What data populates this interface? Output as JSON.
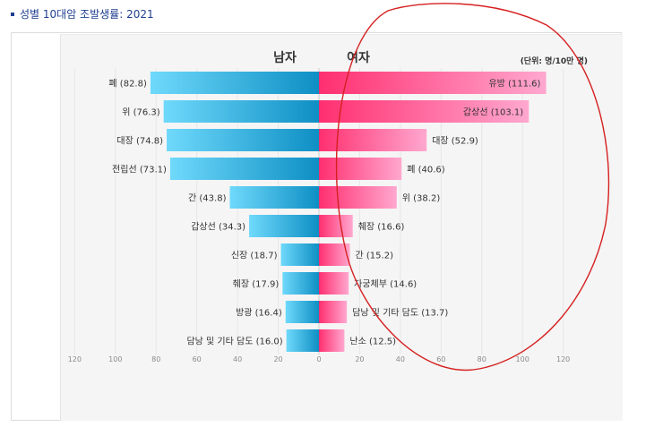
{
  "page": {
    "title": "성별 10대암 조발생률: 2021"
  },
  "chart_data": {
    "type": "bar",
    "orientation": "horizontal",
    "subtype": "population-pyramid",
    "unit_label": "(단위: 명/10만 명)",
    "left_header": "남자",
    "right_header": "여자",
    "xlim": [
      -120,
      120
    ],
    "x_ticks": [
      "120",
      "100",
      "80",
      "60",
      "40",
      "20",
      "0",
      "20",
      "40",
      "60",
      "80",
      "100",
      "120"
    ],
    "series": [
      {
        "name": "남자",
        "categories": [
          "폐",
          "위",
          "대장",
          "전립선",
          "간",
          "갑상선",
          "신장",
          "췌장",
          "방광",
          "담낭 및 기타 담도"
        ],
        "values": [
          82.8,
          76.3,
          74.8,
          73.1,
          43.8,
          34.3,
          18.7,
          17.9,
          16.4,
          16.0
        ],
        "labels": [
          "폐 (82.8)",
          "위 (76.3)",
          "대장 (74.8)",
          "전립선 (73.1)",
          "간 (43.8)",
          "갑상선 (34.3)",
          "신장 (18.7)",
          "췌장 (17.9)",
          "방광 (16.4)",
          "담낭 및 기타 담도 (16.0)"
        ],
        "color": "#1aa7d8"
      },
      {
        "name": "여자",
        "categories": [
          "유방",
          "갑상선",
          "대장",
          "폐",
          "위",
          "췌장",
          "간",
          "자궁체부",
          "담낭 및 기타 담도",
          "난소"
        ],
        "values": [
          111.6,
          103.1,
          52.9,
          40.6,
          38.2,
          16.6,
          15.2,
          14.6,
          13.7,
          12.5
        ],
        "labels": [
          "유방 (111.6)",
          "갑상선 (103.1)",
          "대장 (52.9)",
          "폐 (40.6)",
          "위 (38.2)",
          "췌장 (16.6)",
          "간 (15.2)",
          "자궁체부 (14.6)",
          "담낭 및 기타 담도 (13.7)",
          "난소 (12.5)"
        ],
        "color": "#ff3d7f"
      }
    ],
    "grid": true,
    "legend": "none"
  },
  "annotation": {
    "type": "hand-drawn circle",
    "color": "#d62020"
  }
}
